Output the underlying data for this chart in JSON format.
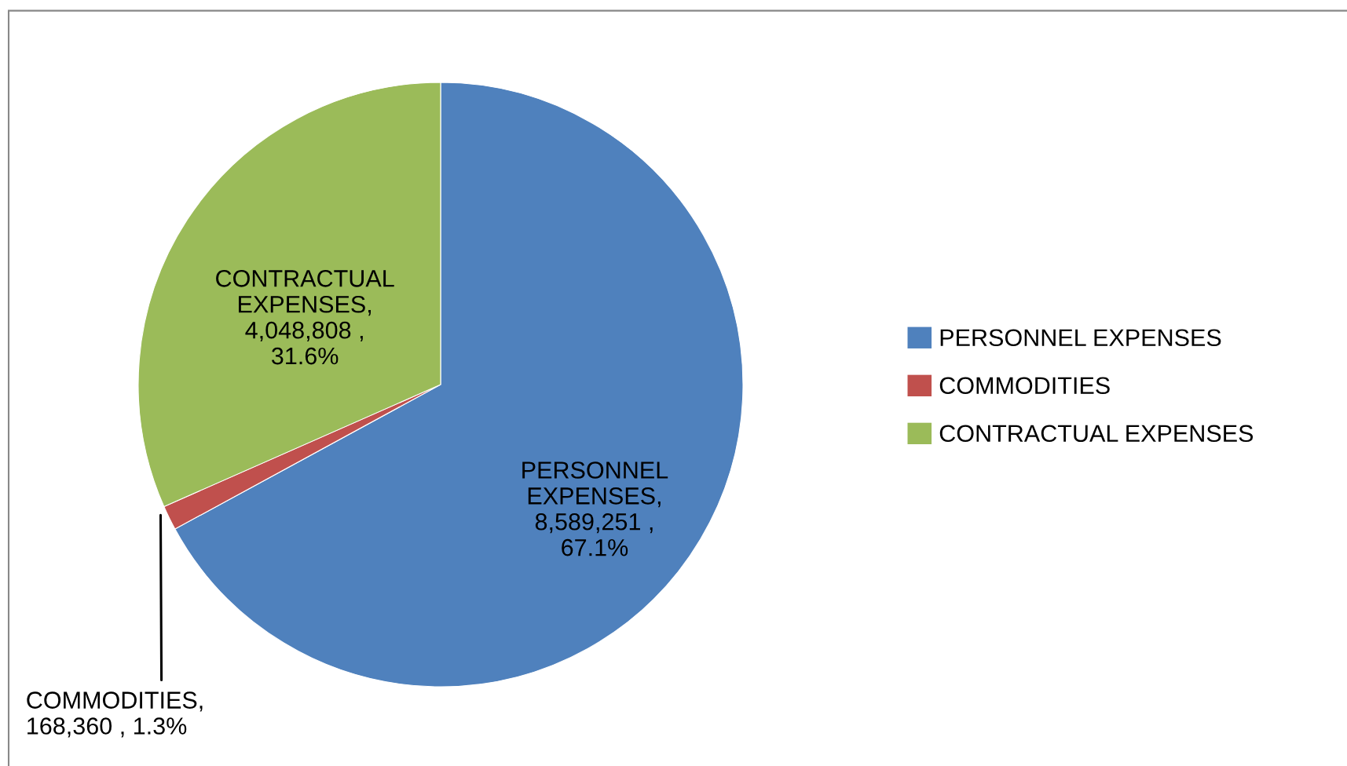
{
  "chart_data": {
    "type": "pie",
    "categories": [
      "PERSONNEL EXPENSES",
      "COMMODITIES",
      "CONTRACTUAL EXPENSES"
    ],
    "values": [
      8589251,
      168360,
      4048808
    ],
    "colors": [
      "#4f81bd",
      "#c0504d",
      "#9bbb59"
    ],
    "value_labels": [
      "PERSONNEL\nEXPENSES,\n8,589,251 ,\n67.1%",
      "COMMODITIES,\n168,360 , 1.3%",
      "CONTRACTUAL\nEXPENSES,\n4,048,808 ,\n31.6%"
    ],
    "legend": "right"
  }
}
